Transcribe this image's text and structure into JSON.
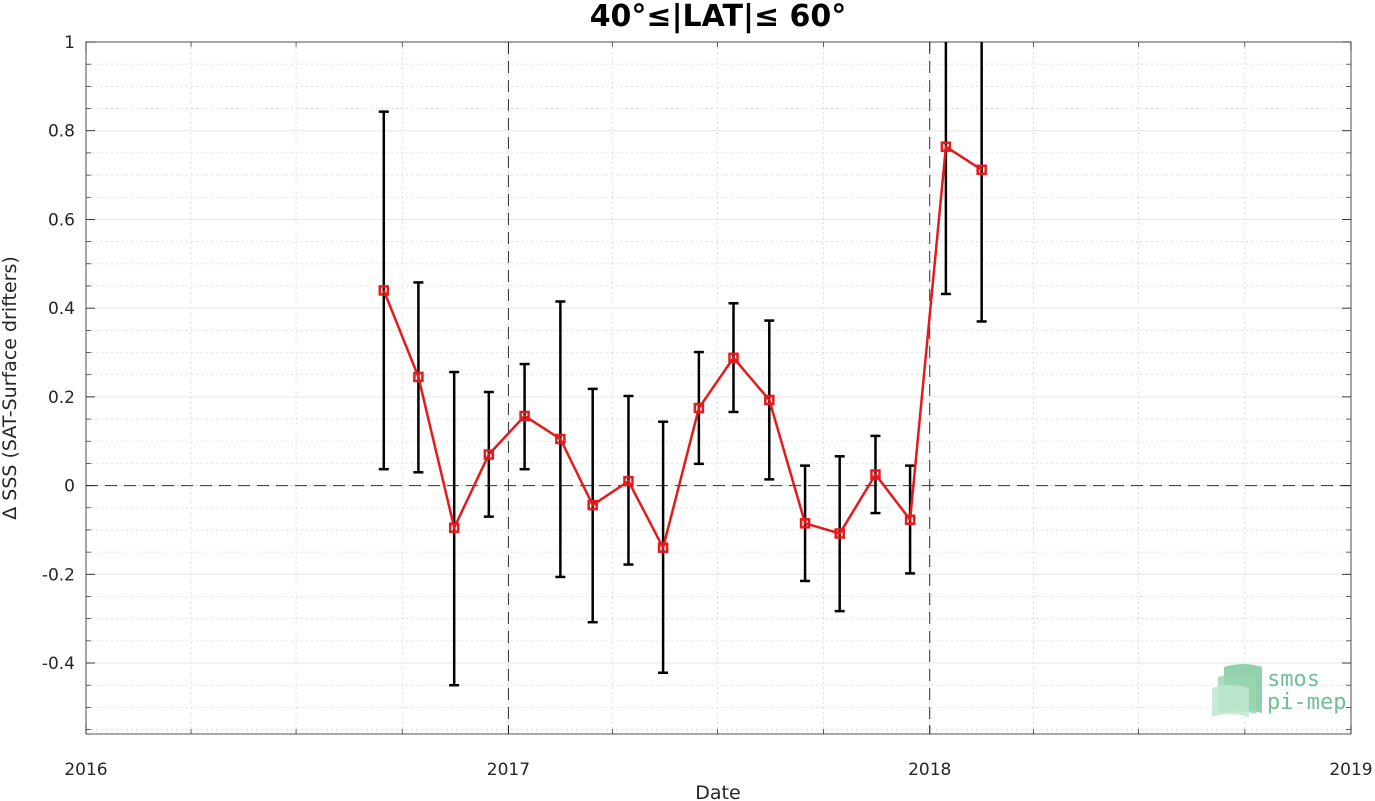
{
  "chart_data": {
    "type": "line",
    "title": "40°≤|LAT|≤ 60°",
    "xlabel": "Date",
    "ylabel": "Δ SSS (SAT-Surface drifters)",
    "xlim": [
      "2016-01-01",
      "2019-01-01"
    ],
    "ylim": [
      -0.56,
      1.0
    ],
    "x_ticks": [
      "2016",
      "2017",
      "2018",
      "2019"
    ],
    "y_ticks": [
      {
        "value": 1,
        "label": "1"
      },
      {
        "value": 0.8,
        "label": "0.8"
      },
      {
        "value": 0.6,
        "label": "0.6"
      },
      {
        "value": 0.4,
        "label": "0.4"
      },
      {
        "value": 0.2,
        "label": "0.2"
      },
      {
        "value": 0,
        "label": "0"
      },
      {
        "value": -0.2,
        "label": "-0.2"
      },
      {
        "value": -0.4,
        "label": "-0.4"
      }
    ],
    "grid": true,
    "reference_lines": {
      "horizontal_at": 0,
      "vertical_at": [
        "2017-01-01",
        "2018-01-01"
      ]
    },
    "series": [
      {
        "color": "#e41a1c",
        "marker": "square",
        "points": [
          {
            "x": "2016-09-15",
            "y": 0.44,
            "lower": 0.037,
            "upper": 0.843
          },
          {
            "x": "2016-10-15",
            "y": 0.245,
            "lower": 0.03,
            "upper": 0.458
          },
          {
            "x": "2016-11-15",
            "y": -0.095,
            "lower": -0.45,
            "upper": 0.256
          },
          {
            "x": "2016-12-15",
            "y": 0.07,
            "lower": -0.07,
            "upper": 0.211
          },
          {
            "x": "2017-01-15",
            "y": 0.157,
            "lower": 0.037,
            "upper": 0.274
          },
          {
            "x": "2017-02-15",
            "y": 0.105,
            "lower": -0.206,
            "upper": 0.415
          },
          {
            "x": "2017-03-15",
            "y": -0.044,
            "lower": -0.308,
            "upper": 0.218
          },
          {
            "x": "2017-04-15",
            "y": 0.01,
            "lower": -0.178,
            "upper": 0.202
          },
          {
            "x": "2017-05-15",
            "y": -0.14,
            "lower": -0.422,
            "upper": 0.144
          },
          {
            "x": "2017-06-15",
            "y": 0.175,
            "lower": 0.049,
            "upper": 0.301
          },
          {
            "x": "2017-07-15",
            "y": 0.288,
            "lower": 0.166,
            "upper": 0.411
          },
          {
            "x": "2017-08-15",
            "y": 0.193,
            "lower": 0.014,
            "upper": 0.372
          },
          {
            "x": "2017-09-15",
            "y": -0.085,
            "lower": -0.215,
            "upper": 0.045
          },
          {
            "x": "2017-10-15",
            "y": -0.108,
            "lower": -0.283,
            "upper": 0.066
          },
          {
            "x": "2017-11-15",
            "y": 0.025,
            "lower": -0.062,
            "upper": 0.112
          },
          {
            "x": "2017-12-15",
            "y": -0.077,
            "lower": -0.198,
            "upper": 0.045
          },
          {
            "x": "2018-01-15",
            "y": 0.764,
            "lower": 0.432,
            "upper": 1.0
          },
          {
            "x": "2018-02-15",
            "y": 0.712,
            "lower": 0.37,
            "upper": 1.0
          }
        ]
      }
    ]
  },
  "logo": {
    "line1": "smos",
    "line2": "pi-mep"
  }
}
